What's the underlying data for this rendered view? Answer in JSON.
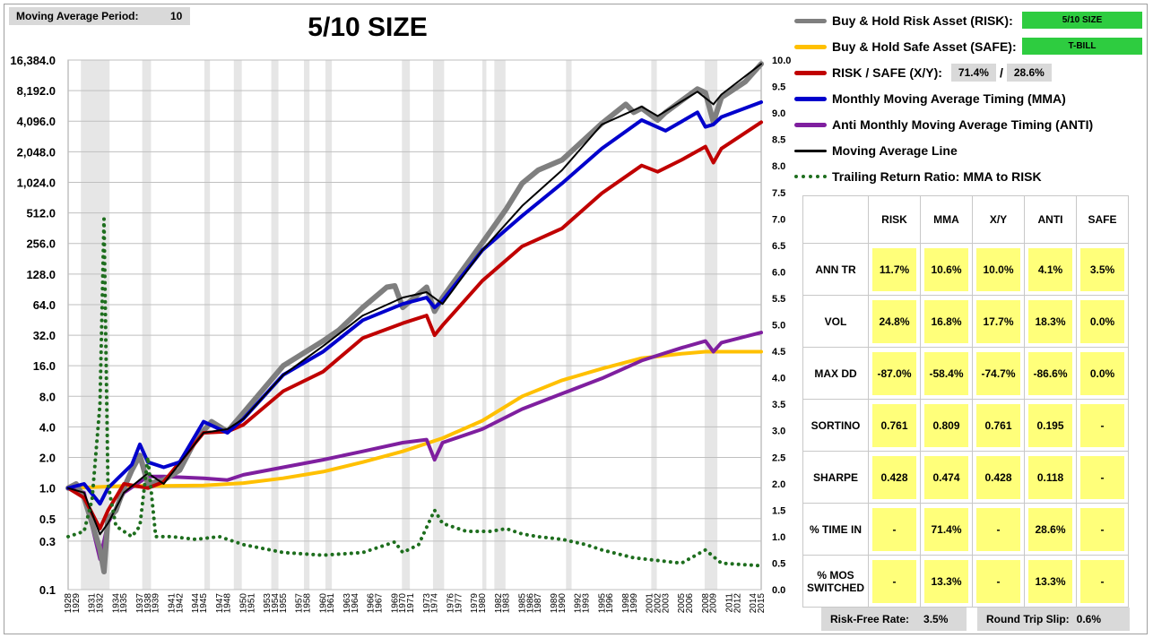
{
  "header": {
    "period_label": "Moving Average Period:",
    "period_value": "10",
    "title": "5/10 SIZE"
  },
  "legend": {
    "risk": {
      "label": "Buy & Hold Risk Asset (RISK):",
      "tag": "5/10 SIZE",
      "color": "#7f7f7f"
    },
    "safe": {
      "label": "Buy & Hold Safe Asset (SAFE):",
      "tag": "T-BILL",
      "color": "#ffc000"
    },
    "xy": {
      "label": "RISK / SAFE (X/Y):",
      "risk_pct": "71.4%",
      "sep": "/",
      "safe_pct": "28.6%",
      "color": "#c00000"
    },
    "mma": {
      "label": "Monthly Moving Average Timing (MMA)",
      "color": "#0000cc"
    },
    "anti": {
      "label": "Anti Monthly Moving Average Timing (ANTI)",
      "color": "#7f1f9f"
    },
    "ma": {
      "label": "Moving Average Line",
      "color": "#000000"
    },
    "ratio": {
      "label": "Trailing Return Ratio: MMA to RISK",
      "color": "#1e6e1e"
    },
    "tag_color": "#2ecc40"
  },
  "stats": {
    "headers": [
      "RISK",
      "MMA",
      "X/Y",
      "ANTI",
      "SAFE"
    ],
    "rows": [
      {
        "label": "ANN TR",
        "values": [
          "11.7%",
          "10.6%",
          "10.0%",
          "4.1%",
          "3.5%"
        ]
      },
      {
        "label": "VOL",
        "values": [
          "24.8%",
          "16.8%",
          "17.7%",
          "18.3%",
          "0.0%"
        ]
      },
      {
        "label": "MAX DD",
        "values": [
          "-87.0%",
          "-58.4%",
          "-74.7%",
          "-86.6%",
          "0.0%"
        ]
      },
      {
        "label": "SORTINO",
        "values": [
          "0.761",
          "0.809",
          "0.761",
          "0.195",
          "-"
        ]
      },
      {
        "label": "SHARPE",
        "values": [
          "0.428",
          "0.474",
          "0.428",
          "0.118",
          "-"
        ]
      },
      {
        "label": "% TIME IN",
        "values": [
          "-",
          "71.4%",
          "-",
          "28.6%",
          "-"
        ]
      },
      {
        "label": "% MOS SWITCHED",
        "values": [
          "-",
          "13.3%",
          "-",
          "13.3%",
          "-"
        ]
      }
    ],
    "cell_color": "#ffff7a"
  },
  "footer": {
    "rf_label": "Risk-Free Rate:",
    "rf_value": "3.5%",
    "slip_label": "Round Trip Slip:",
    "slip_value": "0.6%"
  },
  "chart_data": {
    "type": "line",
    "y_left_ticks": [
      "16,384.0",
      "8,192.0",
      "4,096.0",
      "2,048.0",
      "1,024.0",
      "512.0",
      "256.0",
      "128.0",
      "64.0",
      "32.0",
      "16.0",
      "8.0",
      "4.0",
      "2.0",
      "1.0",
      "0.5",
      "0.3",
      "0.1"
    ],
    "y_left_values": [
      16384,
      8192,
      4096,
      2048,
      1024,
      512,
      256,
      128,
      64,
      32,
      16,
      8,
      4,
      2,
      1,
      0.5,
      0.3,
      0.1
    ],
    "y_left_scale": "log",
    "y_right_ticks": [
      "10.0",
      "9.5",
      "9.0",
      "8.5",
      "8.0",
      "7.5",
      "7.0",
      "6.5",
      "6.0",
      "5.5",
      "5.0",
      "4.5",
      "4.0",
      "3.5",
      "3.0",
      "2.5",
      "2.0",
      "1.5",
      "1.0",
      "0.5",
      "0.0"
    ],
    "y_right_range": [
      0,
      10
    ],
    "x_range": [
      1928,
      2015
    ],
    "x_ticks": [
      "1928",
      "1929",
      "1931",
      "1932",
      "1934",
      "1935",
      "1937",
      "1938",
      "1939",
      "1941",
      "1942",
      "1944",
      "1945",
      "1947",
      "1948",
      "1950",
      "1951",
      "1953",
      "1954",
      "1955",
      "1957",
      "1958",
      "1960",
      "1961",
      "1963",
      "1964",
      "1966",
      "1967",
      "1969",
      "1970",
      "1971",
      "1973",
      "1974",
      "1976",
      "1977",
      "1979",
      "1980",
      "1982",
      "1983",
      "1985",
      "1986",
      "1987",
      "1989",
      "1990",
      "1992",
      "1993",
      "1995",
      "1996",
      "1998",
      "1999",
      "2001",
      "2002",
      "2003",
      "2005",
      "2006",
      "2008",
      "2009",
      "2011",
      "2012",
      "2014",
      "2015"
    ],
    "recessions": [
      [
        1929.6,
        1933.2
      ],
      [
        1937.3,
        1938.4
      ],
      [
        1945.1,
        1945.8
      ],
      [
        1948.8,
        1949.8
      ],
      [
        1953.5,
        1954.4
      ],
      [
        1957.6,
        1958.3
      ],
      [
        1960.3,
        1961.1
      ],
      [
        1969.9,
        1970.9
      ],
      [
        1973.8,
        1975.2
      ],
      [
        1980.0,
        1980.5
      ],
      [
        1981.5,
        1982.9
      ],
      [
        1990.5,
        1991.2
      ],
      [
        2001.2,
        2001.9
      ],
      [
        2007.9,
        2009.5
      ]
    ],
    "series": [
      {
        "name": "Buy & Hold Risk Asset (RISK)",
        "axis": "left",
        "x": [
          1928,
          1929,
          1930,
          1931,
          1932,
          1932.5,
          1933,
          1934,
          1935,
          1936,
          1937,
          1938,
          1940,
          1942,
          1944,
          1946,
          1948,
          1950,
          1955,
          1960,
          1962,
          1965,
          1968,
          1969,
          1970,
          1973,
          1974,
          1975,
          1980,
          1983,
          1985,
          1987,
          1990,
          1995,
          1998,
          1999,
          2000,
          2002,
          2003,
          2007,
          2008,
          2009,
          2010,
          2013,
          2015
        ],
        "y": [
          1,
          1.1,
          0.8,
          0.45,
          0.25,
          0.15,
          0.5,
          0.6,
          1.0,
          1.5,
          2.1,
          1.1,
          1.2,
          1.5,
          3,
          4.5,
          3.6,
          5.5,
          16,
          28,
          36,
          60,
          95,
          98,
          60,
          95,
          55,
          75,
          260,
          560,
          1000,
          1350,
          1700,
          3900,
          6000,
          5000,
          5500,
          4200,
          5000,
          8500,
          7800,
          4000,
          7000,
          10000,
          15000
        ]
      },
      {
        "name": "Buy & Hold Safe Asset (SAFE)",
        "axis": "left",
        "x": [
          1928,
          1935,
          1940,
          1945,
          1950,
          1955,
          1960,
          1965,
          1970,
          1975,
          1980,
          1985,
          1990,
          1995,
          2000,
          2005,
          2008,
          2015
        ],
        "y": [
          1,
          1.05,
          1.05,
          1.06,
          1.12,
          1.25,
          1.45,
          1.8,
          2.3,
          3.1,
          4.6,
          8,
          11.5,
          15,
          19,
          21,
          22,
          22
        ]
      },
      {
        "name": "RISK / SAFE (X/Y)",
        "axis": "left",
        "x": [
          1928,
          1930,
          1932,
          1933,
          1935,
          1938,
          1940,
          1945,
          1948,
          1950,
          1955,
          1960,
          1965,
          1970,
          1973,
          1974,
          1975,
          1980,
          1985,
          1990,
          1995,
          2000,
          2002,
          2005,
          2008,
          2009,
          2010,
          2015
        ],
        "y": [
          1,
          0.8,
          0.4,
          0.6,
          1.1,
          1.0,
          1.15,
          3.5,
          3.6,
          4.2,
          9,
          14,
          30,
          42,
          50,
          32,
          40,
          110,
          240,
          360,
          800,
          1500,
          1300,
          1700,
          2300,
          1600,
          2200,
          4000
        ]
      },
      {
        "name": "Monthly Moving Average Timing (MMA)",
        "axis": "left",
        "x": [
          1928,
          1930,
          1932,
          1933,
          1936,
          1937,
          1938,
          1940,
          1942,
          1945,
          1948,
          1950,
          1955,
          1960,
          1965,
          1970,
          1973,
          1974,
          1975,
          1980,
          1985,
          1990,
          1995,
          2000,
          2003,
          2007,
          2008,
          2009,
          2010,
          2015
        ],
        "y": [
          1,
          1.1,
          0.7,
          1.0,
          1.7,
          2.7,
          1.8,
          1.6,
          1.8,
          4.5,
          3.5,
          4.8,
          13,
          22,
          45,
          65,
          75,
          60,
          70,
          220,
          480,
          1000,
          2200,
          4200,
          3300,
          5000,
          3600,
          3800,
          4500,
          6300
        ]
      },
      {
        "name": "Anti Monthly Moving Average Timing (ANTI)",
        "axis": "left",
        "x": [
          1928,
          1930,
          1932,
          1933,
          1935,
          1938,
          1940,
          1945,
          1948,
          1950,
          1955,
          1960,
          1965,
          1970,
          1973,
          1974,
          1975,
          1980,
          1985,
          1990,
          1995,
          2000,
          2005,
          2008,
          2009,
          2010,
          2015
        ],
        "y": [
          1,
          0.9,
          0.2,
          0.45,
          0.9,
          1.3,
          1.3,
          1.25,
          1.2,
          1.35,
          1.6,
          1.9,
          2.3,
          2.8,
          3.0,
          1.9,
          2.8,
          3.8,
          6,
          8.5,
          12,
          18,
          24,
          28,
          22,
          27,
          34
        ]
      },
      {
        "name": "Moving Average Line",
        "axis": "left",
        "x": [
          1928,
          1930,
          1932,
          1933,
          1935,
          1938,
          1940,
          1945,
          1948,
          1950,
          1955,
          1960,
          1965,
          1970,
          1973,
          1975,
          1980,
          1985,
          1990,
          1995,
          2000,
          2002,
          2007,
          2009,
          2010,
          2015
        ],
        "y": [
          1,
          0.9,
          0.35,
          0.45,
          0.9,
          1.4,
          1.1,
          3.5,
          3.8,
          4.8,
          13,
          25,
          50,
          75,
          85,
          65,
          220,
          600,
          1350,
          3800,
          5700,
          4600,
          8000,
          6000,
          7500,
          15000
        ]
      },
      {
        "name": "Trailing Return Ratio: MMA to RISK",
        "axis": "right",
        "dotted": true,
        "x": [
          1928,
          1930,
          1931,
          1932,
          1932.5,
          1933,
          1934,
          1936,
          1937,
          1938,
          1939,
          1941,
          1944,
          1947,
          1950,
          1955,
          1960,
          1965,
          1969,
          1970,
          1972,
          1974,
          1975,
          1978,
          1981,
          1983,
          1985,
          1987,
          1990,
          1993,
          1995,
          1999,
          2005,
          2008,
          2010,
          2015
        ],
        "y": [
          1.0,
          1.1,
          1.7,
          3.5,
          7.0,
          2.0,
          1.2,
          1.0,
          1.2,
          2.5,
          1.0,
          1.0,
          0.95,
          1.0,
          0.85,
          0.7,
          0.65,
          0.7,
          0.9,
          0.7,
          0.85,
          1.5,
          1.25,
          1.1,
          1.1,
          1.15,
          1.05,
          1.0,
          0.95,
          0.85,
          0.75,
          0.6,
          0.5,
          0.75,
          0.5,
          0.45
        ]
      }
    ]
  }
}
